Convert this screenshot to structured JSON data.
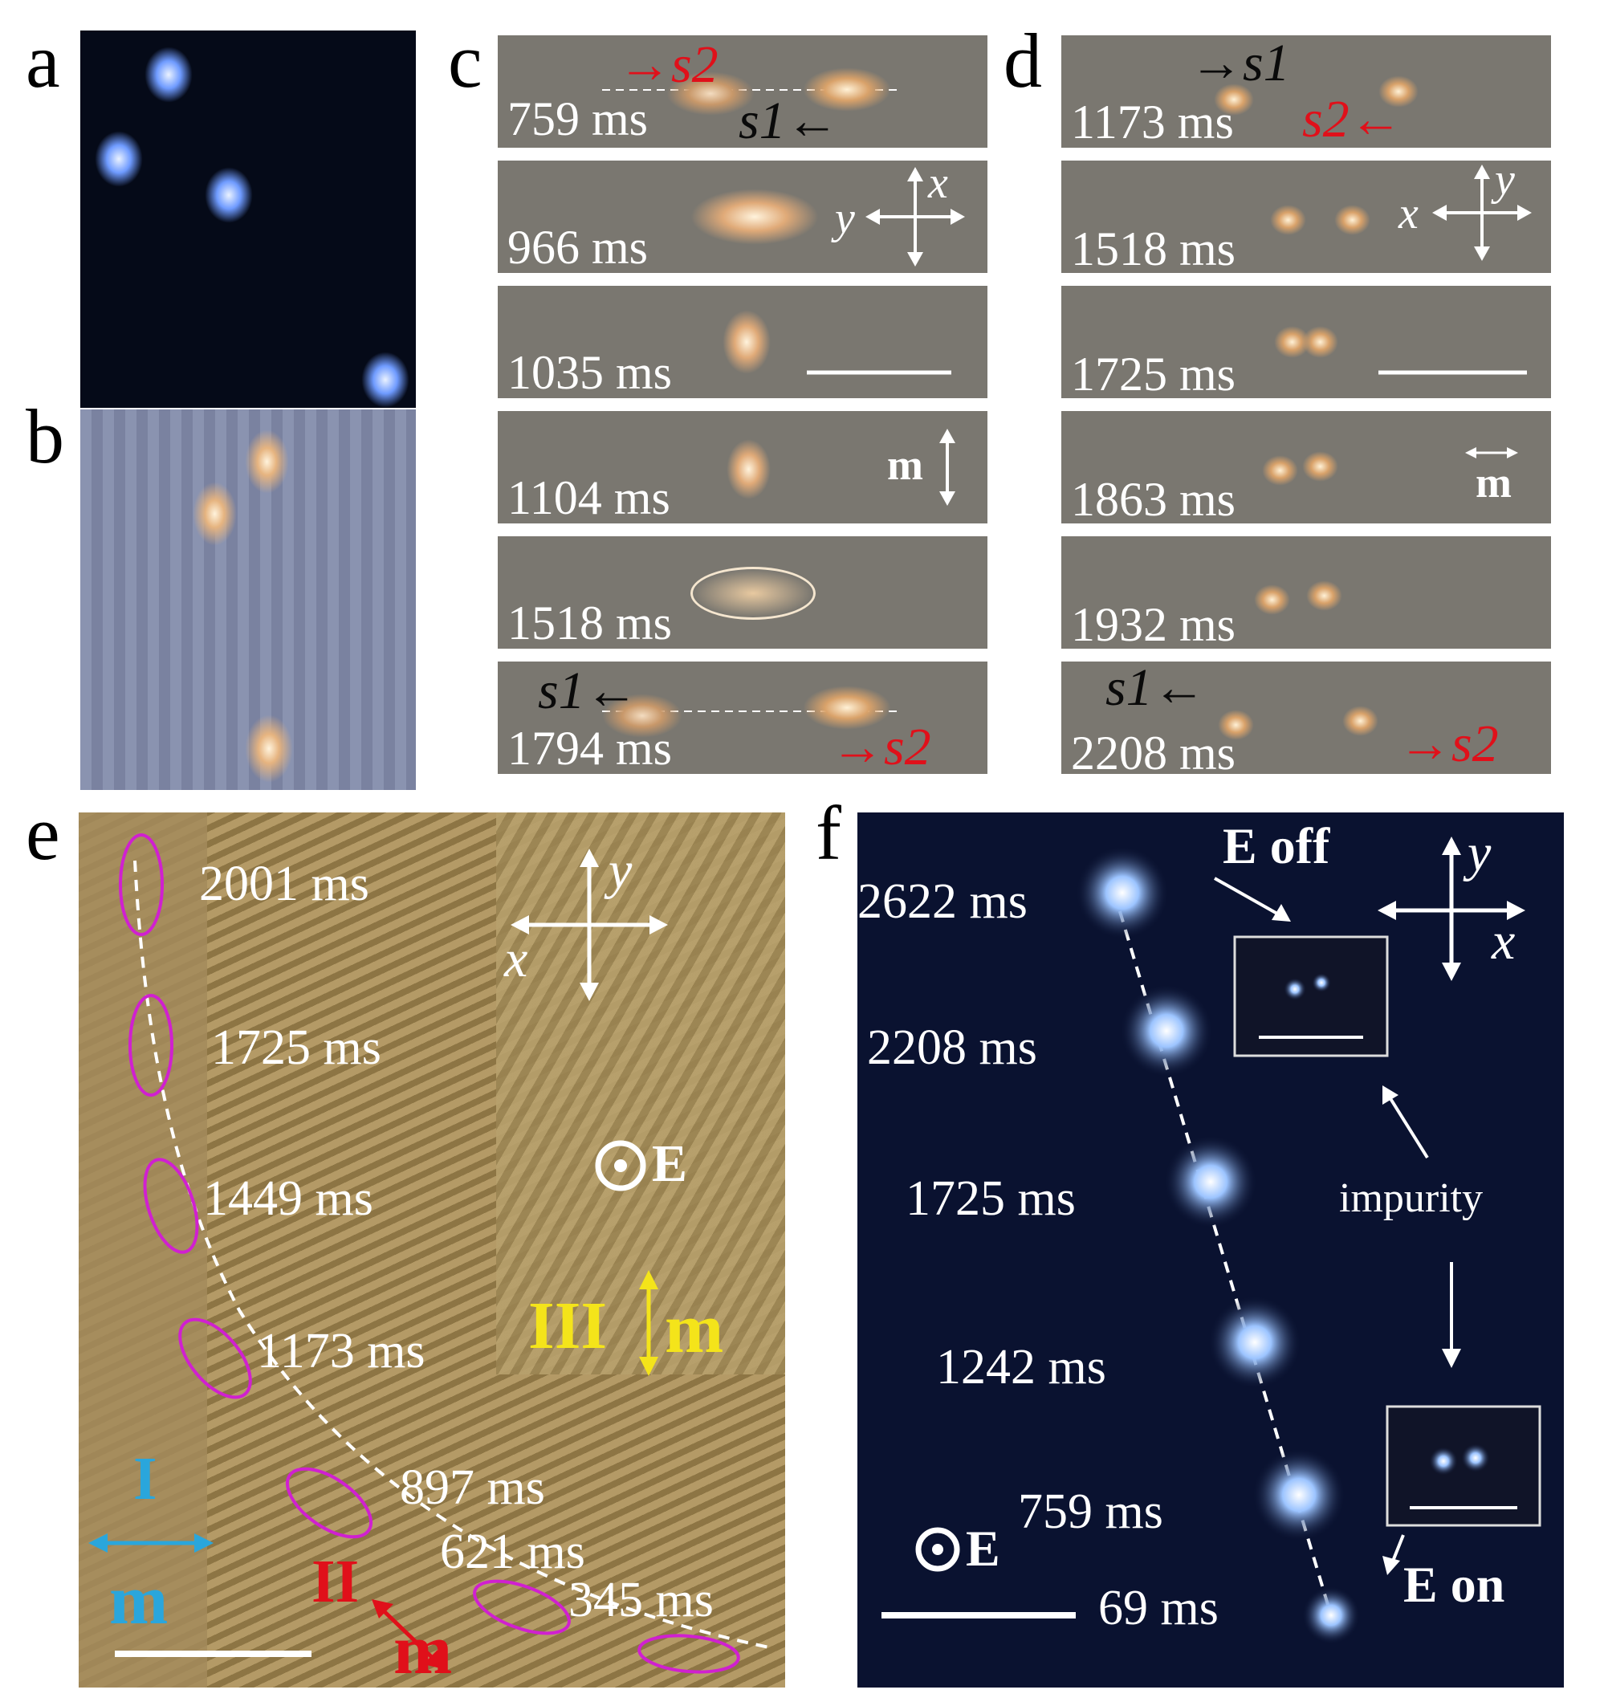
{
  "panel_labels": {
    "a": "a",
    "b": "b",
    "c": "c",
    "d": "d",
    "e": "e",
    "f": "f"
  },
  "panel_c": {
    "frames": [
      "759 ms",
      "966 ms",
      "1035 ms",
      "1104 ms",
      "1518 ms",
      "1794 ms"
    ],
    "s1": "s1",
    "s2": "s2",
    "axis_x": "x",
    "axis_y": "y",
    "m": "m"
  },
  "panel_d": {
    "frames": [
      "1173 ms",
      "1518 ms",
      "1725 ms",
      "1863 ms",
      "1932 ms",
      "2208 ms"
    ],
    "s1": "s1",
    "s2": "s2",
    "axis_x": "x",
    "axis_y": "y",
    "m": "m"
  },
  "panel_e": {
    "times": [
      "2001 ms",
      "1725 ms",
      "1449 ms",
      "1173 ms",
      "897 ms",
      "621 ms",
      "345 ms"
    ],
    "axis_x": "x",
    "axis_y": "y",
    "field": "E",
    "region_I": "I",
    "region_II": "II",
    "region_III": "III",
    "m": "m",
    "colors": {
      "I": "#2aa6dc",
      "II": "#e0101a",
      "III": "#f4e41a",
      "ellipse": "#d020d0"
    }
  },
  "panel_f": {
    "times": [
      "2622 ms",
      "2208 ms",
      "1725 ms",
      "1242 ms",
      "759 ms",
      "69 ms"
    ],
    "axis_x": "x",
    "axis_y": "y",
    "field": "E",
    "e_off": "E off",
    "e_on": "E on",
    "impurity": "impurity"
  }
}
